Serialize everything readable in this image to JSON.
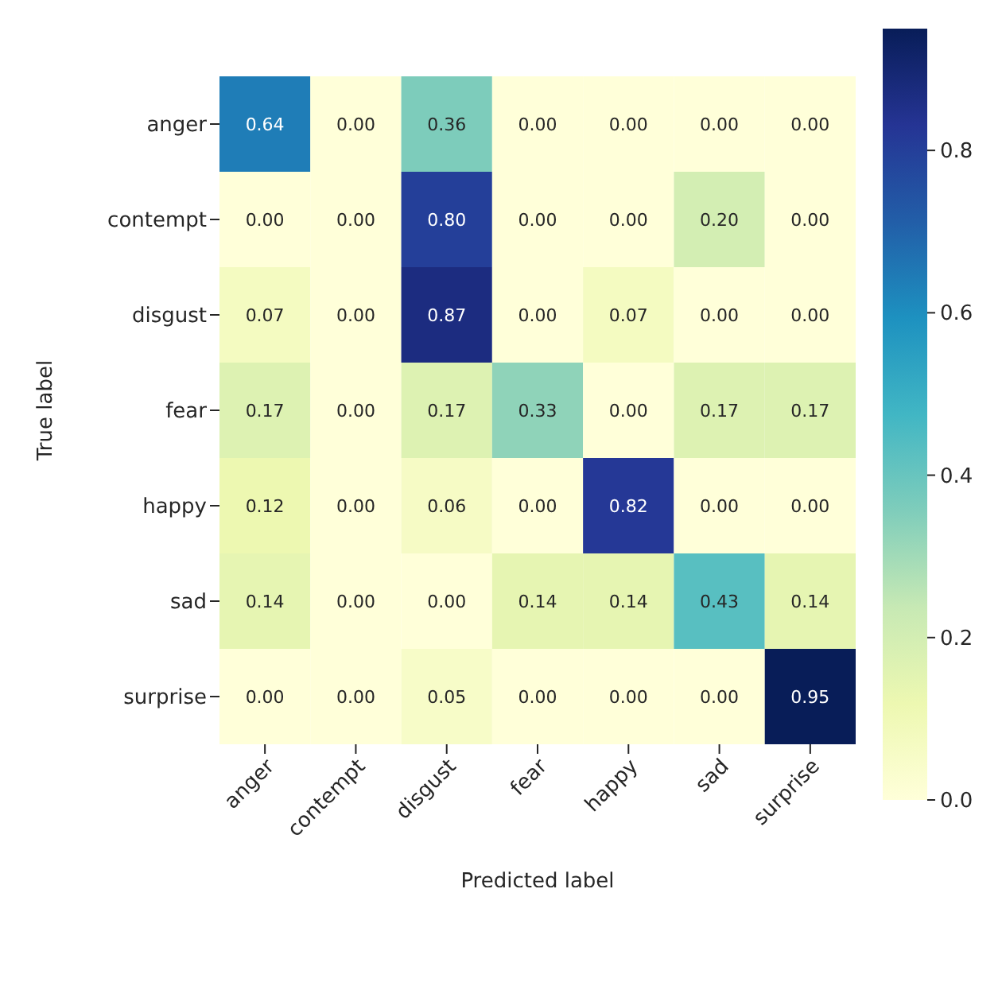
{
  "chart_data": {
    "type": "heatmap",
    "xlabel": "Predicted label",
    "ylabel": "True label",
    "categories": [
      "anger",
      "contempt",
      "disgust",
      "fear",
      "happy",
      "sad",
      "surprise"
    ],
    "y_categories": [
      "anger",
      "contempt",
      "disgust",
      "fear",
      "happy",
      "sad",
      "surprise"
    ],
    "cells": [
      [
        0.64,
        0.0,
        0.36,
        0.0,
        0.0,
        0.0,
        0.0
      ],
      [
        0.0,
        0.0,
        0.8,
        0.0,
        0.0,
        0.2,
        0.0
      ],
      [
        0.07,
        0.0,
        0.87,
        0.0,
        0.07,
        0.0,
        0.0
      ],
      [
        0.17,
        0.0,
        0.17,
        0.33,
        0.0,
        0.17,
        0.17
      ],
      [
        0.12,
        0.0,
        0.06,
        0.0,
        0.82,
        0.0,
        0.0
      ],
      [
        0.14,
        0.0,
        0.0,
        0.14,
        0.14,
        0.43,
        0.14
      ],
      [
        0.0,
        0.0,
        0.05,
        0.0,
        0.0,
        0.0,
        0.95
      ]
    ],
    "cell_labels": [
      [
        "0.64",
        "0.00",
        "0.36",
        "0.00",
        "0.00",
        "0.00",
        "0.00"
      ],
      [
        "0.00",
        "0.00",
        "0.80",
        "0.00",
        "0.00",
        "0.20",
        "0.00"
      ],
      [
        "0.07",
        "0.00",
        "0.87",
        "0.00",
        "0.07",
        "0.00",
        "0.00"
      ],
      [
        "0.17",
        "0.00",
        "0.17",
        "0.33",
        "0.00",
        "0.17",
        "0.17"
      ],
      [
        "0.12",
        "0.00",
        "0.06",
        "0.00",
        "0.82",
        "0.00",
        "0.00"
      ],
      [
        "0.14",
        "0.00",
        "0.00",
        "0.14",
        "0.14",
        "0.43",
        "0.14"
      ],
      [
        "0.00",
        "0.00",
        "0.05",
        "0.00",
        "0.00",
        "0.00",
        "0.95"
      ]
    ],
    "clim": [
      0,
      0.95
    ],
    "cticks": [
      {
        "value": 0,
        "label": "0.0"
      },
      {
        "value": 0.2,
        "label": "0.2"
      },
      {
        "value": 0.4,
        "label": "0.4"
      },
      {
        "value": 0.6,
        "label": "0.6"
      },
      {
        "value": 0.8,
        "label": "0.8"
      }
    ]
  }
}
